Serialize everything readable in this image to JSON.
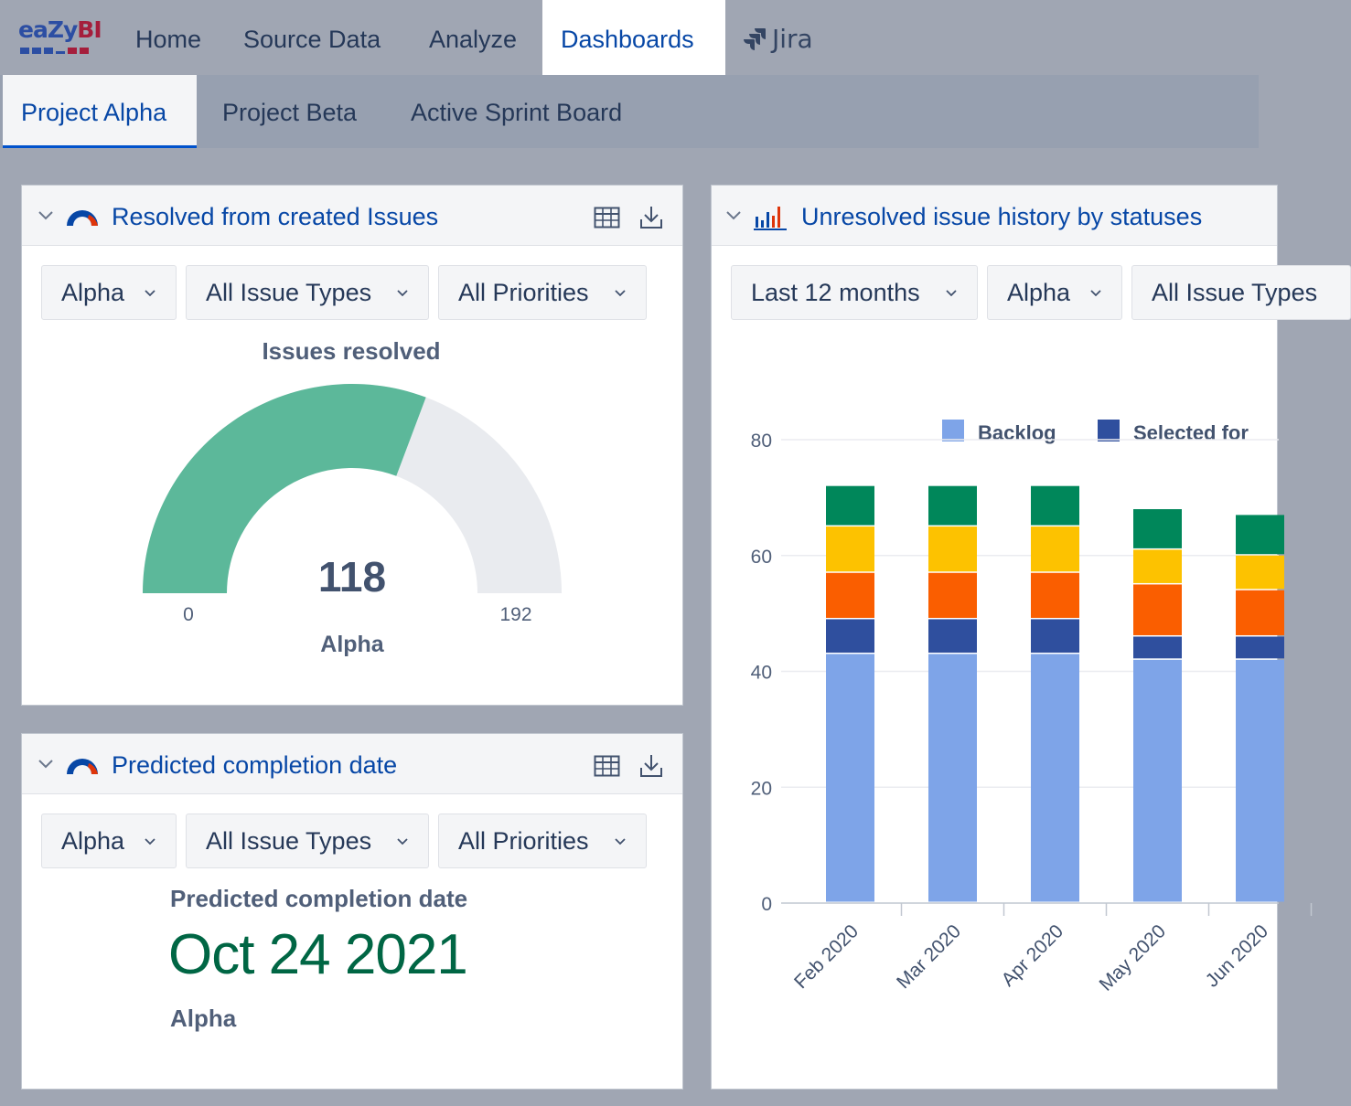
{
  "brand": {
    "logo_text_a": "ea",
    "logo_text_b": "Zy",
    "logo_text_c": "BI",
    "colors": {
      "blue": "#2c4ea3",
      "red": "#a51e3c"
    }
  },
  "topnav": {
    "items": [
      {
        "label": "Home"
      },
      {
        "label": "Source Data"
      },
      {
        "label": "Analyze"
      },
      {
        "label": "Dashboards",
        "active": true
      }
    ],
    "jira_label": "Jira",
    "jira_icon": "jira-icon"
  },
  "subnav": {
    "tabs": [
      {
        "label": "Project Alpha",
        "active": true
      },
      {
        "label": "Project Beta"
      },
      {
        "label": "Active Sprint Board"
      }
    ]
  },
  "panels": {
    "resolved": {
      "title": "Resolved from created Issues",
      "icon": "gauge-icon",
      "filters": [
        "Alpha",
        "All Issue Types",
        "All Priorities"
      ],
      "gauge": {
        "title": "Issues resolved",
        "value": "118",
        "min": "0",
        "max": "192",
        "label": "Alpha",
        "fill_color": "#5cb89a",
        "track_color": "#e9ebef"
      }
    },
    "predicted": {
      "title": "Predicted completion date",
      "icon": "gauge-icon",
      "filters": [
        "Alpha",
        "All Issue Types",
        "All Priorities"
      ],
      "heading": "Predicted completion date",
      "date": "Oct 24 2021",
      "project": "Alpha"
    },
    "history": {
      "title": "Unresolved issue history by statuses",
      "icon": "bar-chart-icon",
      "filters": [
        "Last 12 months",
        "Alpha",
        "All Issue Types"
      ]
    }
  },
  "chart_data": {
    "type": "bar",
    "stacked": true,
    "categories": [
      "Feb 2020",
      "Mar 2020",
      "Apr 2020",
      "May 2020",
      "Jun 2020"
    ],
    "series": [
      {
        "name": "Backlog",
        "color": "#7ea4e8",
        "values": [
          43,
          43,
          43,
          42,
          42
        ]
      },
      {
        "name": "Selected for",
        "color": "#2f4f9e",
        "values": [
          6,
          6,
          6,
          4,
          4
        ]
      },
      {
        "color": "#fa5e00",
        "values": [
          8,
          8,
          8,
          9,
          8
        ]
      },
      {
        "color": "#fdc200",
        "values": [
          8,
          8,
          8,
          6,
          6
        ]
      },
      {
        "color": "#00875a",
        "values": [
          7,
          7,
          7,
          7,
          7
        ]
      }
    ],
    "y_ticks": [
      "0",
      "20",
      "40",
      "60",
      "80"
    ],
    "ylim": [
      0,
      80
    ],
    "grid": true,
    "legend_position": "top"
  }
}
